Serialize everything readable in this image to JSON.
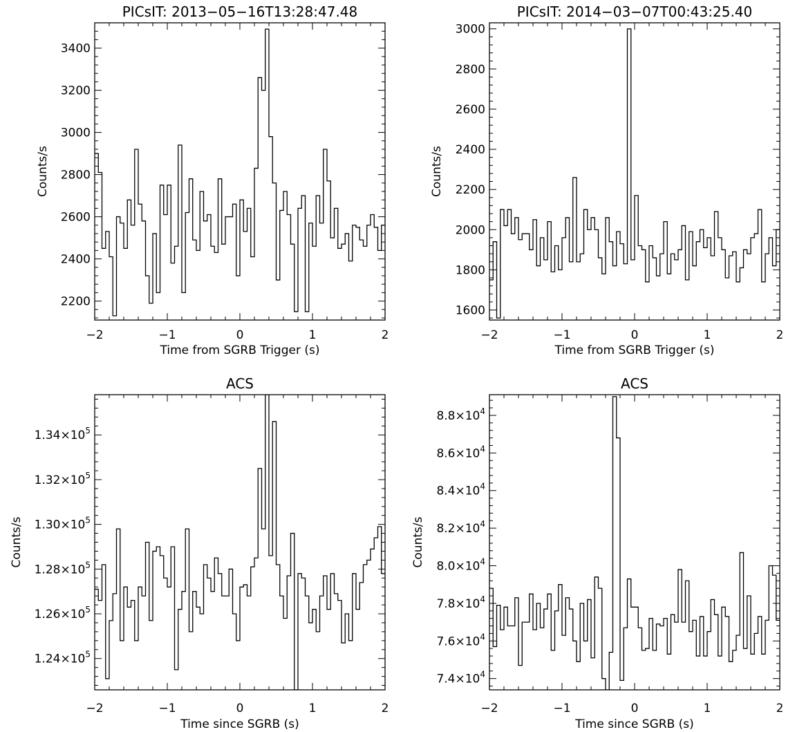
{
  "chart_data": [
    {
      "type": "line",
      "title": "PICsIT: 2013−05−16T13:28:47.48",
      "xlabel": "Time from SGRB Trigger (s)",
      "ylabel": "Counts/s",
      "xlim": [
        -2,
        2
      ],
      "ylim": [
        2110,
        3520
      ],
      "x_ticks": [
        -2,
        -1,
        0,
        1,
        2
      ],
      "x_tick_labels": [
        "−2",
        "−1",
        "0",
        "1",
        "2"
      ],
      "y_ticks": [
        2200,
        2400,
        2600,
        2800,
        3000,
        3200,
        3400
      ],
      "y_tick_labels": [
        "2200",
        "2400",
        "2600",
        "2800",
        "3000",
        "3200",
        "3400"
      ],
      "grid": false,
      "step": true,
      "bin_width": 0.05,
      "x": [
        -2.0,
        -1.95,
        -1.9,
        -1.85,
        -1.8,
        -1.75,
        -1.7,
        -1.65,
        -1.6,
        -1.55,
        -1.5,
        -1.45,
        -1.4,
        -1.35,
        -1.3,
        -1.25,
        -1.2,
        -1.15,
        -1.1,
        -1.05,
        -1.0,
        -0.95,
        -0.9,
        -0.85,
        -0.8,
        -0.75,
        -0.7,
        -0.65,
        -0.6,
        -0.55,
        -0.5,
        -0.45,
        -0.4,
        -0.35,
        -0.3,
        -0.25,
        -0.2,
        -0.15,
        -0.1,
        -0.05,
        0.0,
        0.05,
        0.1,
        0.15,
        0.2,
        0.25,
        0.3,
        0.35,
        0.4,
        0.45,
        0.5,
        0.55,
        0.6,
        0.65,
        0.7,
        0.75,
        0.8,
        0.85,
        0.9,
        0.95,
        1.0,
        1.05,
        1.1,
        1.15,
        1.2,
        1.25,
        1.3,
        1.35,
        1.4,
        1.45,
        1.5,
        1.55,
        1.6,
        1.65,
        1.7,
        1.75,
        1.8,
        1.85,
        1.9,
        1.95
      ],
      "values": [
        2900,
        2810,
        2450,
        2530,
        2410,
        2130,
        2600,
        2570,
        2450,
        2680,
        2560,
        2920,
        2660,
        2580,
        2320,
        2190,
        2520,
        2240,
        2750,
        2610,
        2750,
        2380,
        2460,
        2940,
        2240,
        2620,
        2780,
        2490,
        2440,
        2720,
        2580,
        2610,
        2460,
        2430,
        2780,
        2470,
        2600,
        2600,
        2660,
        2320,
        2680,
        2530,
        2640,
        2410,
        2830,
        3260,
        3200,
        3490,
        2980,
        2760,
        2300,
        2630,
        2720,
        2610,
        2470,
        2150,
        2640,
        2700,
        2150,
        2570,
        2460,
        2700,
        2570,
        2920,
        2770,
        2500,
        2640,
        2450,
        2470,
        2520,
        2390,
        2560,
        2550,
        2490,
        2460,
        2560,
        2610,
        2550,
        2440,
        2560
      ],
      "series": [
        {
          "values": "values"
        }
      ]
    },
    {
      "type": "line",
      "title": "PICsIT: 2014−03−07T00:43:25.40",
      "xlabel": "Time from SGRB Trigger (s)",
      "ylabel": "Counts/s",
      "xlim": [
        -2,
        2
      ],
      "ylim": [
        1550,
        3030
      ],
      "x_ticks": [
        -2,
        -1,
        0,
        1,
        2
      ],
      "x_tick_labels": [
        "−2",
        "−1",
        "0",
        "1",
        "2"
      ],
      "y_ticks": [
        1600,
        1800,
        2000,
        2200,
        2400,
        2600,
        2800,
        3000
      ],
      "y_tick_labels": [
        "1600",
        "1800",
        "2000",
        "2200",
        "2400",
        "2600",
        "2800",
        "3000"
      ],
      "grid": false,
      "step": true,
      "bin_width": 0.05,
      "x": [
        -2.0,
        -1.95,
        -1.9,
        -1.85,
        -1.8,
        -1.75,
        -1.7,
        -1.65,
        -1.6,
        -1.55,
        -1.5,
        -1.45,
        -1.4,
        -1.35,
        -1.3,
        -1.25,
        -1.2,
        -1.15,
        -1.1,
        -1.05,
        -1.0,
        -0.95,
        -0.9,
        -0.85,
        -0.8,
        -0.75,
        -0.7,
        -0.65,
        -0.6,
        -0.55,
        -0.5,
        -0.45,
        -0.4,
        -0.35,
        -0.3,
        -0.25,
        -0.2,
        -0.15,
        -0.1,
        -0.05,
        0.0,
        0.05,
        0.1,
        0.15,
        0.2,
        0.25,
        0.3,
        0.35,
        0.4,
        0.45,
        0.5,
        0.55,
        0.6,
        0.65,
        0.7,
        0.75,
        0.8,
        0.85,
        0.9,
        0.95,
        1.0,
        1.05,
        1.1,
        1.15,
        1.2,
        1.25,
        1.3,
        1.35,
        1.4,
        1.45,
        1.5,
        1.55,
        1.6,
        1.65,
        1.7,
        1.75,
        1.8,
        1.85,
        1.9,
        1.95
      ],
      "values": [
        1750,
        1940,
        1560,
        2100,
        2020,
        2100,
        1980,
        2060,
        1950,
        1980,
        1980,
        1900,
        2050,
        1820,
        1960,
        1850,
        2040,
        1790,
        1920,
        1800,
        1960,
        2060,
        1840,
        2260,
        1840,
        1880,
        2100,
        2000,
        2060,
        2000,
        1860,
        1780,
        2060,
        1940,
        1820,
        1990,
        1930,
        1830,
        3000,
        1850,
        2170,
        1920,
        1900,
        1740,
        1920,
        1860,
        1770,
        1880,
        2040,
        1780,
        1880,
        1850,
        1900,
        2020,
        1750,
        1990,
        1820,
        1940,
        2000,
        1910,
        1960,
        1870,
        2090,
        1960,
        1900,
        1760,
        1870,
        1890,
        1740,
        1810,
        1900,
        1880,
        1960,
        1980,
        2100,
        1740,
        1880,
        1960,
        1820,
        2000
      ],
      "series": [
        {
          "values": "values"
        }
      ]
    },
    {
      "type": "line",
      "title": "ACS",
      "xlabel": "Time since SGRB (s)",
      "ylabel": "Counts/s",
      "xlim": [
        -2,
        2
      ],
      "ylim": [
        122600,
        135800
      ],
      "x_ticks": [
        -2,
        -1,
        0,
        1,
        2
      ],
      "x_tick_labels": [
        "−2",
        "−1",
        "0",
        "1",
        "2"
      ],
      "y_ticks": [
        124000,
        126000,
        128000,
        130000,
        132000,
        134000
      ],
      "y_tick_labels": [
        {
          "mantissa": "1.24×10",
          "exp": "5"
        },
        {
          "mantissa": "1.26×10",
          "exp": "5"
        },
        {
          "mantissa": "1.28×10",
          "exp": "5"
        },
        {
          "mantissa": "1.30×10",
          "exp": "5"
        },
        {
          "mantissa": "1.32×10",
          "exp": "5"
        },
        {
          "mantissa": "1.34×10",
          "exp": "5"
        }
      ],
      "grid": false,
      "step": true,
      "bin_width": 0.05,
      "x": [
        -2.0,
        -1.95,
        -1.9,
        -1.85,
        -1.8,
        -1.75,
        -1.7,
        -1.65,
        -1.6,
        -1.55,
        -1.5,
        -1.45,
        -1.4,
        -1.35,
        -1.3,
        -1.25,
        -1.2,
        -1.15,
        -1.1,
        -1.05,
        -1.0,
        -0.95,
        -0.9,
        -0.85,
        -0.8,
        -0.75,
        -0.7,
        -0.65,
        -0.6,
        -0.55,
        -0.5,
        -0.45,
        -0.4,
        -0.35,
        -0.3,
        -0.25,
        -0.2,
        -0.15,
        -0.1,
        -0.05,
        0.0,
        0.05,
        0.1,
        0.15,
        0.2,
        0.25,
        0.3,
        0.35,
        0.4,
        0.45,
        0.5,
        0.55,
        0.6,
        0.65,
        0.7,
        0.75,
        0.8,
        0.85,
        0.9,
        0.95,
        1.0,
        1.05,
        1.1,
        1.15,
        1.2,
        1.25,
        1.3,
        1.35,
        1.4,
        1.45,
        1.5,
        1.55,
        1.6,
        1.65,
        1.7,
        1.75,
        1.8,
        1.85,
        1.9,
        1.95
      ],
      "values": [
        127100,
        126600,
        128200,
        123100,
        125700,
        126900,
        129800,
        124800,
        127200,
        126300,
        126600,
        124800,
        127200,
        126800,
        129200,
        125700,
        128800,
        129000,
        128600,
        127600,
        127200,
        129000,
        123500,
        126200,
        127000,
        129800,
        125200,
        127000,
        126300,
        126000,
        128200,
        127600,
        127000,
        128500,
        127800,
        126800,
        126800,
        128000,
        126000,
        124800,
        127200,
        127300,
        126800,
        128100,
        128500,
        132500,
        129800,
        135800,
        128600,
        134600,
        128200,
        126800,
        125800,
        127700,
        129600,
        122600,
        127800,
        127600,
        126800,
        125600,
        126200,
        125200,
        126800,
        127700,
        126200,
        127800,
        126900,
        126600,
        124700,
        126000,
        124800,
        127800,
        126200,
        127400,
        128200,
        128400,
        128900,
        129400,
        129900,
        127800
      ],
      "series": [
        {
          "values": "values"
        }
      ]
    },
    {
      "type": "line",
      "title": "ACS",
      "xlabel": "Time since SGRB (s)",
      "ylabel": "Counts/s",
      "xlim": [
        -2,
        2
      ],
      "ylim": [
        73400,
        89100
      ],
      "x_ticks": [
        -2,
        -1,
        0,
        1,
        2
      ],
      "x_tick_labels": [
        "−2",
        "−1",
        "0",
        "1",
        "2"
      ],
      "y_ticks": [
        74000,
        76000,
        78000,
        80000,
        82000,
        84000,
        86000,
        88000
      ],
      "y_tick_labels": [
        {
          "mantissa": "7.4×10",
          "exp": "4"
        },
        {
          "mantissa": "7.6×10",
          "exp": "4"
        },
        {
          "mantissa": "7.8×10",
          "exp": "4"
        },
        {
          "mantissa": "8.0×10",
          "exp": "4"
        },
        {
          "mantissa": "8.2×10",
          "exp": "4"
        },
        {
          "mantissa": "8.4×10",
          "exp": "4"
        },
        {
          "mantissa": "8.6×10",
          "exp": "4"
        },
        {
          "mantissa": "8.8×10",
          "exp": "4"
        }
      ],
      "grid": false,
      "step": true,
      "bin_width": 0.05,
      "x": [
        -2.0,
        -1.95,
        -1.9,
        -1.85,
        -1.8,
        -1.75,
        -1.7,
        -1.65,
        -1.6,
        -1.55,
        -1.5,
        -1.45,
        -1.4,
        -1.35,
        -1.3,
        -1.25,
        -1.2,
        -1.15,
        -1.1,
        -1.05,
        -1.0,
        -0.95,
        -0.9,
        -0.85,
        -0.8,
        -0.75,
        -0.7,
        -0.65,
        -0.6,
        -0.55,
        -0.5,
        -0.45,
        -0.4,
        -0.35,
        -0.3,
        -0.25,
        -0.2,
        -0.15,
        -0.1,
        -0.05,
        0.0,
        0.05,
        0.1,
        0.15,
        0.2,
        0.25,
        0.3,
        0.35,
        0.4,
        0.45,
        0.5,
        0.55,
        0.6,
        0.65,
        0.7,
        0.75,
        0.8,
        0.85,
        0.9,
        0.95,
        1.0,
        1.05,
        1.1,
        1.15,
        1.2,
        1.25,
        1.3,
        1.35,
        1.4,
        1.45,
        1.5,
        1.55,
        1.6,
        1.65,
        1.7,
        1.75,
        1.8,
        1.85,
        1.9,
        1.95
      ],
      "values": [
        78800,
        75700,
        77900,
        76600,
        77800,
        76800,
        76800,
        78300,
        74700,
        77000,
        77000,
        78500,
        76600,
        78000,
        76700,
        77700,
        78500,
        75500,
        77600,
        79000,
        76300,
        78300,
        77700,
        76000,
        74900,
        78000,
        76000,
        78200,
        75100,
        79400,
        78800,
        74000,
        73400,
        75400,
        89000,
        86800,
        73900,
        76700,
        79300,
        77800,
        77800,
        76700,
        75500,
        75600,
        77200,
        75500,
        76900,
        76800,
        77200,
        75300,
        77400,
        77000,
        79800,
        77000,
        79200,
        76500,
        77100,
        75200,
        77300,
        75200,
        76500,
        78200,
        77400,
        75200,
        77800,
        77300,
        74900,
        75500,
        76300,
        80700,
        75600,
        78400,
        75300,
        76400,
        77300,
        75300,
        77100,
        80000,
        79500,
        77100
      ]
    }
  ]
}
